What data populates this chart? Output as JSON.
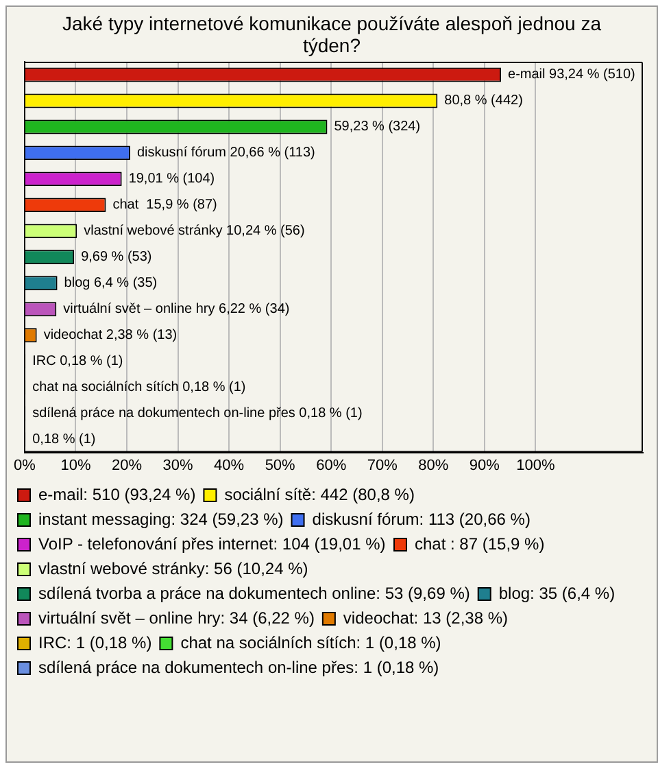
{
  "chart_data": {
    "type": "bar",
    "orientation": "horizontal",
    "title": "Jaké typy internetové komunikace používáte alespoň jednou za týden?",
    "categories": [
      null,
      null,
      null,
      null,
      null,
      null,
      null,
      null,
      null,
      null,
      null,
      null,
      null,
      null,
      null
    ],
    "series": [
      {
        "name": "e-mail: 510 (93,24 %)",
        "color": "#cc1a10",
        "values": [
          93.24,
          null,
          null,
          null,
          null,
          null,
          null,
          null,
          null,
          null,
          null,
          null,
          null,
          null,
          null
        ],
        "value_labels": [
          "e-mail 93,24 % (510)",
          null,
          null,
          null,
          null,
          null,
          null,
          null,
          null,
          null,
          null,
          null,
          null,
          null,
          null
        ]
      },
      {
        "name": "sociální sítě: 442 (80,8 %)",
        "color": "#ffee00",
        "values": [
          null,
          80.8,
          null,
          null,
          null,
          null,
          null,
          null,
          null,
          null,
          null,
          null,
          null,
          null,
          null
        ],
        "value_labels": [
          null,
          "80,8 % (442)",
          null,
          null,
          null,
          null,
          null,
          null,
          null,
          null,
          null,
          null,
          null,
          null,
          null
        ]
      },
      {
        "name": "instant messaging: 324 (59,23 %)",
        "color": "#1fb51f",
        "values": [
          null,
          null,
          59.23,
          null,
          null,
          null,
          null,
          null,
          null,
          null,
          null,
          null,
          null,
          null,
          null
        ],
        "value_labels": [
          null,
          null,
          "59,23 % (324)",
          null,
          null,
          null,
          null,
          null,
          null,
          null,
          null,
          null,
          null,
          null,
          null
        ]
      },
      {
        "name": "diskusní fórum: 113 (20,66 %)",
        "color": "#3f6ff0",
        "values": [
          null,
          null,
          null,
          20.66,
          null,
          null,
          null,
          null,
          null,
          null,
          null,
          null,
          null,
          null,
          null
        ],
        "value_labels": [
          null,
          null,
          null,
          "diskusní fórum 20,66 % (113)",
          null,
          null,
          null,
          null,
          null,
          null,
          null,
          null,
          null,
          null,
          null
        ]
      },
      {
        "name": "VoIP - telefonování přes internet: 104 (19,01 %)",
        "color": "#cc22cc",
        "values": [
          null,
          null,
          null,
          null,
          19.01,
          null,
          null,
          null,
          null,
          null,
          null,
          null,
          null,
          null,
          null
        ],
        "value_labels": [
          null,
          null,
          null,
          null,
          "19,01 % (104)",
          null,
          null,
          null,
          null,
          null,
          null,
          null,
          null,
          null,
          null
        ]
      },
      {
        "name": "chat : 87 (15,9 %)",
        "color": "#ee3a0a",
        "values": [
          null,
          null,
          null,
          null,
          null,
          15.9,
          null,
          null,
          null,
          null,
          null,
          null,
          null,
          null,
          null
        ],
        "value_labels": [
          null,
          null,
          null,
          null,
          null,
          "chat  15,9 % (87)",
          null,
          null,
          null,
          null,
          null,
          null,
          null,
          null,
          null
        ]
      },
      {
        "name": "vlastní webové stránky: 56 (10,24 %)",
        "color": "#ccff77",
        "values": [
          null,
          null,
          null,
          null,
          null,
          null,
          10.24,
          null,
          null,
          null,
          null,
          null,
          null,
          null,
          null
        ],
        "value_labels": [
          null,
          null,
          null,
          null,
          null,
          null,
          "vlastní webové stránky 10,24 % (56)",
          null,
          null,
          null,
          null,
          null,
          null,
          null,
          null
        ]
      },
      {
        "name": "sdílená tvorba a práce na dokumentech online: 53 (9,69 %)",
        "color": "#11885a",
        "values": [
          null,
          null,
          null,
          null,
          null,
          null,
          null,
          9.69,
          null,
          null,
          null,
          null,
          null,
          null,
          null
        ],
        "value_labels": [
          null,
          null,
          null,
          null,
          null,
          null,
          null,
          "9,69 % (53)",
          null,
          null,
          null,
          null,
          null,
          null,
          null
        ]
      },
      {
        "name": "blog: 35 (6,4 %)",
        "color": "#1f7f8f",
        "values": [
          null,
          null,
          null,
          null,
          null,
          null,
          null,
          null,
          6.4,
          null,
          null,
          null,
          null,
          null,
          null
        ],
        "value_labels": [
          null,
          null,
          null,
          null,
          null,
          null,
          null,
          null,
          "blog 6,4 % (35)",
          null,
          null,
          null,
          null,
          null,
          null
        ]
      },
      {
        "name": "virtuální svět – online hry: 34 (6,22 %)",
        "color": "#bb55bb",
        "values": [
          null,
          null,
          null,
          null,
          null,
          null,
          null,
          null,
          null,
          6.22,
          null,
          null,
          null,
          null,
          null
        ],
        "value_labels": [
          null,
          null,
          null,
          null,
          null,
          null,
          null,
          null,
          null,
          "virtuální svět – online hry 6,22 % (34)",
          null,
          null,
          null,
          null,
          null
        ]
      },
      {
        "name": "videochat: 13 (2,38 %)",
        "color": "#e07a00",
        "values": [
          null,
          null,
          null,
          null,
          null,
          null,
          null,
          null,
          null,
          null,
          2.38,
          null,
          null,
          null,
          null
        ],
        "value_labels": [
          null,
          null,
          null,
          null,
          null,
          null,
          null,
          null,
          null,
          null,
          "videochat 2,38 % (13)",
          null,
          null,
          null,
          null
        ]
      },
      {
        "name": "IRC: 1 (0,18 %)",
        "color": "#e0b000",
        "values": [
          null,
          null,
          null,
          null,
          null,
          null,
          null,
          null,
          null,
          null,
          null,
          0.18,
          null,
          null,
          null
        ],
        "value_labels": [
          null,
          null,
          null,
          null,
          null,
          null,
          null,
          null,
          null,
          null,
          null,
          "IRC 0,18 % (1)",
          null,
          null,
          null
        ]
      },
      {
        "name": "chat na sociálních sítích: 1 (0,18 %)",
        "color": "#44dd33",
        "values": [
          null,
          null,
          null,
          null,
          null,
          null,
          null,
          null,
          null,
          null,
          null,
          null,
          0.18,
          null,
          null
        ],
        "value_labels": [
          null,
          null,
          null,
          null,
          null,
          null,
          null,
          null,
          null,
          null,
          null,
          null,
          "chat na sociálních sítích 0,18 % (1)",
          null,
          null
        ]
      },
      {
        "name": "sdílená práce na dokumentech on-line přes: 1 (0,18 %)",
        "color": "#6a8fe0",
        "values": [
          null,
          null,
          null,
          null,
          null,
          null,
          null,
          null,
          null,
          null,
          null,
          null,
          null,
          0.18,
          null
        ],
        "value_labels": [
          null,
          null,
          null,
          null,
          null,
          null,
          null,
          null,
          null,
          null,
          null,
          null,
          null,
          "sdílená práce na dokumentech on-line přes 0,18 % (1)",
          null
        ]
      },
      {
        "color": "#2a4fb0",
        "values": [
          null,
          null,
          null,
          null,
          null,
          null,
          null,
          null,
          null,
          null,
          null,
          null,
          null,
          null,
          0.18
        ],
        "value_labels": [
          null,
          null,
          null,
          null,
          null,
          null,
          null,
          null,
          null,
          null,
          null,
          null,
          null,
          null,
          "0,18 % (1)"
        ]
      }
    ],
    "xlim": [
      0,
      121
    ],
    "xticks": [
      {
        "value": 0,
        "label": "0%"
      },
      {
        "value": 10,
        "label": "10%"
      },
      {
        "value": 20,
        "label": "20%"
      },
      {
        "value": 30,
        "label": "30%"
      },
      {
        "value": 40,
        "label": "40%"
      },
      {
        "value": 50,
        "label": "50%"
      },
      {
        "value": 60,
        "label": "60%"
      },
      {
        "value": 70,
        "label": "70%"
      },
      {
        "value": 80,
        "label": "80%"
      },
      {
        "value": 90,
        "label": "90%"
      },
      {
        "value": 100,
        "label": "100%"
      }
    ],
    "grid": "x",
    "tick_labels": "x",
    "legend": "bottom"
  }
}
